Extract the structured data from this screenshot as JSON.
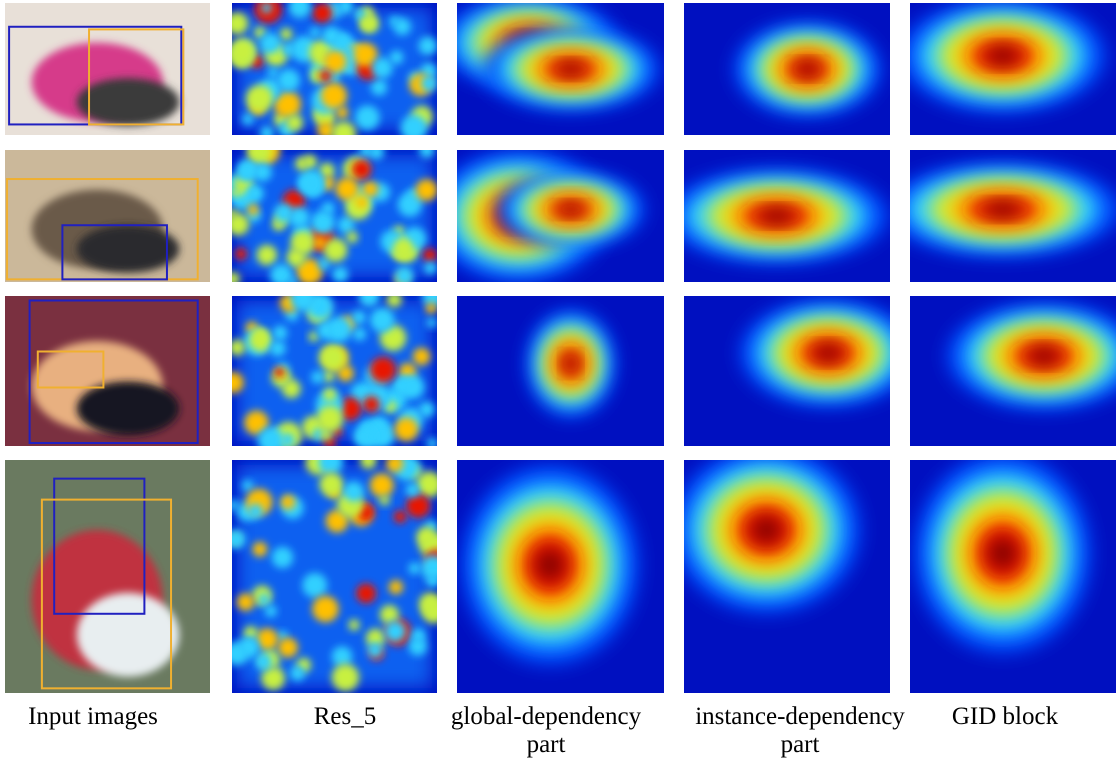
{
  "figure": {
    "columns": [
      {
        "lines": [
          "Input images"
        ]
      },
      {
        "lines": [
          "Res_5"
        ]
      },
      {
        "lines": [
          "global-dependency",
          "part"
        ]
      },
      {
        "lines": [
          "instance-dependency",
          "part"
        ]
      },
      {
        "lines": [
          "GID block"
        ]
      }
    ]
  }
}
